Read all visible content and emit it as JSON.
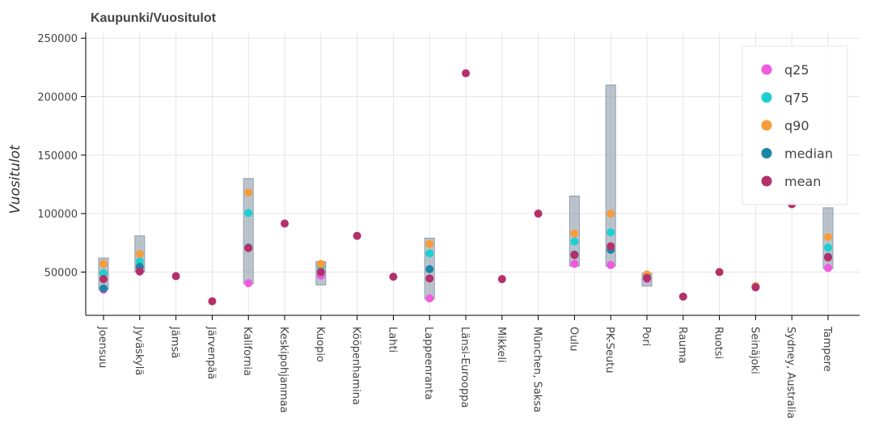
{
  "chart_data": {
    "type": "scatter",
    "title": "Kaupunki/Vuositulot",
    "ylabel": "Vuositulot",
    "xlabel": "",
    "ylim": [
      13000,
      255000
    ],
    "yticks": [
      50000,
      100000,
      150000,
      200000,
      250000
    ],
    "grid": true,
    "legend_position": "top-right",
    "categories": [
      "Joensuu",
      "Jyväskylä",
      "Jämsä",
      "Järvenpää",
      "Kalifornia",
      "Keskipohjanmaa",
      "Kuopio",
      "Kööpenhamina",
      "Lahti",
      "Lappeenranta",
      "Länsi-Eurooppa",
      "Mikkeli",
      "München, Saksa",
      "Oulu",
      "PK-Seutu",
      "Pori",
      "Rauma",
      "Ruotsi",
      "Seinäjoki",
      "Sydney, Australia",
      "Tampere"
    ],
    "ranges": [
      [
        35000,
        62000
      ],
      [
        50000,
        81000
      ],
      null,
      null,
      [
        40000,
        130000
      ],
      null,
      [
        39000,
        59000
      ],
      null,
      null,
      [
        27000,
        79000
      ],
      null,
      null,
      null,
      [
        55000,
        115000
      ],
      [
        55000,
        210000
      ],
      [
        38000,
        49000
      ],
      null,
      null,
      null,
      null,
      [
        53000,
        105000
      ]
    ],
    "series": [
      {
        "name": "q25",
        "color": "#f05bdf",
        "values": [
          35000,
          54000,
          null,
          null,
          40500,
          null,
          47000,
          null,
          null,
          27500,
          null,
          null,
          null,
          57000,
          56000,
          44000,
          null,
          null,
          37000,
          null,
          53500
        ]
      },
      {
        "name": "q75",
        "color": "#1cd0d0",
        "values": [
          49000,
          59000,
          null,
          null,
          100500,
          null,
          55000,
          null,
          null,
          66000,
          null,
          null,
          null,
          76000,
          84000,
          46000,
          null,
          null,
          37500,
          null,
          71000
        ]
      },
      {
        "name": "q90",
        "color": "#f79c3b",
        "values": [
          57000,
          65500,
          null,
          null,
          118000,
          null,
          57000,
          null,
          null,
          74000,
          null,
          null,
          null,
          83000,
          100000,
          48000,
          null,
          null,
          38000,
          null,
          80000
        ]
      },
      {
        "name": "median",
        "color": "#1a86a8",
        "values": [
          36000,
          54500,
          null,
          null,
          71000,
          null,
          50000,
          null,
          null,
          52500,
          null,
          null,
          null,
          65000,
          69000,
          45000,
          null,
          null,
          37000,
          null,
          63000
        ]
      },
      {
        "name": "mean",
        "color": "#b5306a",
        "values": [
          44000,
          50500,
          46500,
          25000,
          70500,
          91500,
          50000,
          81000,
          46000,
          44500,
          220000,
          44000,
          100000,
          64500,
          72000,
          45000,
          29000,
          50000,
          37000,
          108000,
          62500
        ]
      }
    ]
  }
}
